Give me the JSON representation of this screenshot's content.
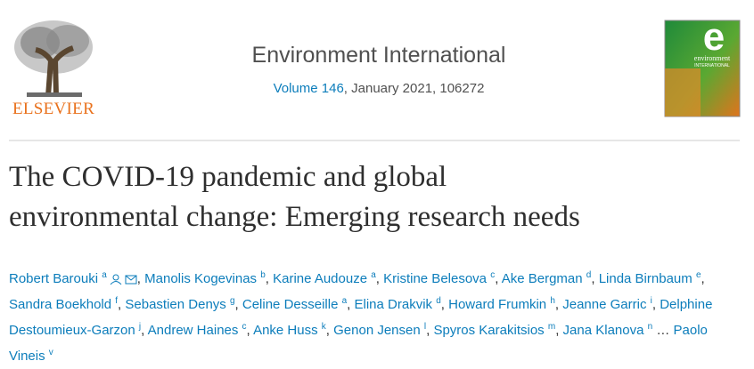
{
  "header": {
    "publisher": "ELSEVIER",
    "journal": "Environment International",
    "volume_link": "Volume 146",
    "issue_info": ", January 2021, 106272",
    "cover": {
      "letter": "e",
      "title": "environment",
      "subtitle": "INTERNATIONAL"
    }
  },
  "article": {
    "title_lines": [
      "The COVID-19 pandemic and global",
      "environmental change: Emerging research needs"
    ],
    "separator": ", ",
    "ellipsis": "…",
    "authors": [
      {
        "name": "Robert Barouki",
        "sup": "a"
      },
      {
        "name": "Manolis Kogevinas",
        "sup": "b"
      },
      {
        "name": "Karine Audouze",
        "sup": "a"
      },
      {
        "name": "Kristine Belesova",
        "sup": "c"
      },
      {
        "name": "Ake Bergman",
        "sup": "d"
      },
      {
        "name": "Linda Birnbaum",
        "sup": "e"
      },
      {
        "name": "Sandra Boekhold",
        "sup": "f"
      },
      {
        "name": "Sebastien Denys",
        "sup": "g"
      },
      {
        "name": "Celine Desseille",
        "sup": "a"
      },
      {
        "name": "Elina Drakvik",
        "sup": "d"
      },
      {
        "name": "Howard Frumkin",
        "sup": "h"
      },
      {
        "name": "Jeanne Garric",
        "sup": "i"
      },
      {
        "name": "Delphine Destoumieux-Garzon",
        "sup": "j"
      },
      {
        "name": "Andrew Haines",
        "sup": "c"
      },
      {
        "name": "Anke Huss",
        "sup": "k"
      },
      {
        "name": "Genon Jensen",
        "sup": "l"
      },
      {
        "name": "Spyros Karakitsios",
        "sup": "m"
      },
      {
        "name": "Jana Klanova",
        "sup": "n"
      }
    ],
    "last_author": {
      "name": "Paolo Vineis",
      "sup": "v"
    }
  }
}
